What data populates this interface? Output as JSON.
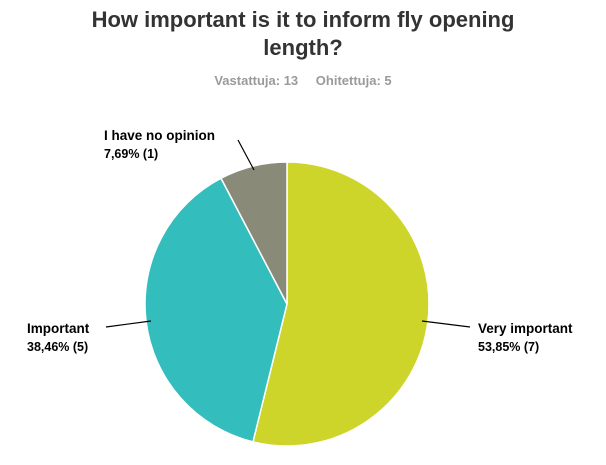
{
  "header": {
    "title_line1": "How important is it to inform fly opening",
    "title_line2": "length?",
    "answered": "Vastattuja: 13",
    "skipped": "Ohitettuja: 5"
  },
  "chart_data": {
    "type": "pie",
    "title": "How important is it to inform fly opening length?",
    "slices": [
      {
        "label": "Very important",
        "value_text": "53,85% (7)",
        "percent": 53.85,
        "count": 7,
        "color": "#cdd42a"
      },
      {
        "label": "Important",
        "value_text": "38,46% (5)",
        "percent": 38.46,
        "count": 5,
        "color": "#33bdbd"
      },
      {
        "label": "I have no opinion",
        "value_text": "7,69% (1)",
        "percent": 7.69,
        "count": 1,
        "color": "#8a8a78"
      }
    ],
    "start_angle_deg": 0,
    "direction": "clockwise"
  }
}
